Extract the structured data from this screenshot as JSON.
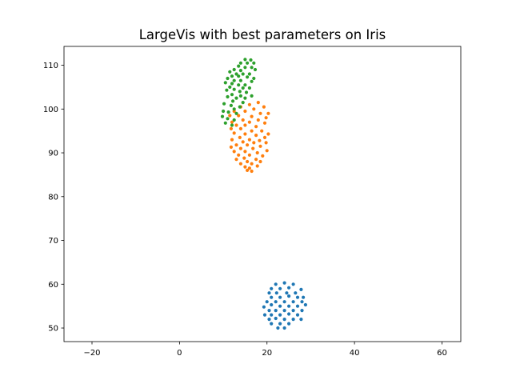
{
  "chart_data": {
    "type": "scatter",
    "title": "LargeVis with best parameters on Iris",
    "xlabel": "",
    "ylabel": "",
    "xlim": [
      -26.4,
      64.3
    ],
    "ylim": [
      46.9,
      114.3
    ],
    "xticks": [
      -20,
      0,
      20,
      40,
      60
    ],
    "yticks": [
      50,
      60,
      70,
      80,
      90,
      100,
      110
    ],
    "grid": false,
    "legend": "none",
    "series": [
      {
        "color": "#1f77b4",
        "points": [
          [
            22.0,
            60.0
          ],
          [
            24.0,
            60.3
          ],
          [
            26.0,
            60.0
          ],
          [
            21.0,
            59.0
          ],
          [
            23.0,
            59.0
          ],
          [
            25.0,
            59.2
          ],
          [
            27.8,
            58.8
          ],
          [
            20.5,
            58.0
          ],
          [
            22.2,
            58.0
          ],
          [
            24.5,
            58.0
          ],
          [
            26.5,
            58.0
          ],
          [
            21.0,
            57.0
          ],
          [
            23.0,
            57.0
          ],
          [
            25.0,
            57.3
          ],
          [
            27.0,
            57.0
          ],
          [
            28.3,
            57.0
          ],
          [
            20.0,
            56.0
          ],
          [
            22.0,
            56.0
          ],
          [
            24.0,
            56.0
          ],
          [
            26.0,
            56.0
          ],
          [
            28.0,
            56.0
          ],
          [
            21.0,
            55.3
          ],
          [
            23.0,
            55.0
          ],
          [
            25.0,
            55.0
          ],
          [
            27.0,
            55.0
          ],
          [
            28.8,
            55.3
          ],
          [
            19.3,
            54.8
          ],
          [
            20.5,
            54.0
          ],
          [
            22.0,
            54.0
          ],
          [
            24.0,
            54.0
          ],
          [
            26.0,
            54.0
          ],
          [
            28.0,
            54.0
          ],
          [
            19.5,
            53.0
          ],
          [
            21.0,
            53.0
          ],
          [
            23.0,
            53.0
          ],
          [
            25.0,
            53.2
          ],
          [
            27.0,
            53.0
          ],
          [
            20.5,
            52.0
          ],
          [
            22.0,
            52.2
          ],
          [
            24.0,
            52.0
          ],
          [
            26.0,
            52.0
          ],
          [
            27.8,
            52.0
          ],
          [
            21.0,
            51.0
          ],
          [
            23.0,
            51.0
          ],
          [
            25.0,
            51.0
          ],
          [
            22.5,
            50.0
          ],
          [
            24.0,
            50.0
          ]
        ]
      },
      {
        "color": "#ff7f0e",
        "points": [
          [
            18.0,
            101.5
          ],
          [
            16.0,
            101.0
          ],
          [
            19.3,
            100.5
          ],
          [
            14.0,
            100.5
          ],
          [
            17.0,
            100.0
          ],
          [
            12.5,
            99.5
          ],
          [
            15.0,
            99.5
          ],
          [
            18.5,
            99.0
          ],
          [
            20.3,
            99.0
          ],
          [
            11.5,
            98.5
          ],
          [
            13.5,
            98.5
          ],
          [
            16.5,
            98.3
          ],
          [
            19.8,
            98.0
          ],
          [
            14.5,
            97.5
          ],
          [
            18.0,
            97.5
          ],
          [
            12.0,
            97.0
          ],
          [
            16.0,
            97.0
          ],
          [
            19.5,
            96.8
          ],
          [
            13.0,
            96.3
          ],
          [
            15.0,
            96.3
          ],
          [
            17.5,
            96.0
          ],
          [
            11.8,
            95.5
          ],
          [
            14.0,
            95.5
          ],
          [
            18.8,
            95.0
          ],
          [
            16.5,
            95.0
          ],
          [
            12.5,
            94.5
          ],
          [
            15.0,
            94.3
          ],
          [
            20.3,
            94.3
          ],
          [
            17.5,
            94.0
          ],
          [
            13.8,
            93.5
          ],
          [
            19.5,
            93.5
          ],
          [
            16.0,
            93.0
          ],
          [
            12.0,
            93.0
          ],
          [
            18.3,
            92.8
          ],
          [
            14.5,
            92.5
          ],
          [
            17.0,
            92.3
          ],
          [
            19.8,
            92.3
          ],
          [
            13.0,
            91.8
          ],
          [
            15.5,
            91.8
          ],
          [
            18.5,
            91.5
          ],
          [
            11.8,
            91.3
          ],
          [
            14.0,
            91.0
          ],
          [
            16.8,
            91.0
          ],
          [
            20.0,
            90.5
          ],
          [
            12.5,
            90.3
          ],
          [
            15.0,
            90.3
          ],
          [
            17.8,
            90.0
          ],
          [
            13.5,
            89.5
          ],
          [
            16.0,
            89.5
          ],
          [
            19.0,
            89.3
          ],
          [
            14.8,
            88.8
          ],
          [
            17.5,
            88.5
          ],
          [
            13.0,
            88.5
          ],
          [
            15.5,
            88.0
          ],
          [
            18.5,
            88.0
          ],
          [
            14.0,
            87.5
          ],
          [
            16.5,
            87.5
          ],
          [
            17.8,
            87.0
          ],
          [
            15.0,
            86.8
          ],
          [
            16.0,
            86.5
          ],
          [
            15.5,
            86.0
          ],
          [
            16.5,
            85.8
          ]
        ]
      },
      {
        "color": "#2ca02c",
        "points": [
          [
            15.0,
            111.3
          ],
          [
            16.3,
            111.2
          ],
          [
            14.0,
            110.5
          ],
          [
            15.5,
            110.5
          ],
          [
            17.0,
            110.5
          ],
          [
            13.5,
            109.8
          ],
          [
            15.0,
            109.5
          ],
          [
            16.5,
            109.5
          ],
          [
            17.3,
            109.0
          ],
          [
            12.5,
            109.0
          ],
          [
            14.0,
            108.8
          ],
          [
            11.5,
            108.5
          ],
          [
            13.0,
            108.0
          ],
          [
            14.5,
            108.0
          ],
          [
            16.0,
            108.0
          ],
          [
            12.0,
            107.5
          ],
          [
            13.5,
            107.5
          ],
          [
            15.5,
            107.3
          ],
          [
            17.0,
            107.0
          ],
          [
            11.0,
            107.0
          ],
          [
            12.5,
            106.5
          ],
          [
            14.0,
            106.5
          ],
          [
            16.5,
            106.3
          ],
          [
            10.5,
            106.0
          ],
          [
            12.0,
            105.8
          ],
          [
            13.5,
            105.5
          ],
          [
            15.0,
            105.5
          ],
          [
            11.5,
            105.0
          ],
          [
            14.5,
            104.8
          ],
          [
            16.0,
            104.8
          ],
          [
            12.5,
            104.5
          ],
          [
            10.8,
            104.3
          ],
          [
            13.8,
            104.0
          ],
          [
            15.3,
            103.8
          ],
          [
            12.0,
            103.3
          ],
          [
            14.0,
            103.0
          ],
          [
            16.5,
            103.0
          ],
          [
            11.0,
            102.8
          ],
          [
            13.0,
            102.5
          ],
          [
            15.0,
            102.5
          ],
          [
            12.2,
            101.8
          ],
          [
            14.5,
            101.5
          ],
          [
            10.2,
            101.2
          ],
          [
            11.8,
            100.8
          ],
          [
            13.8,
            100.5
          ],
          [
            12.5,
            100.0
          ],
          [
            10.0,
            99.5
          ],
          [
            11.2,
            99.3
          ],
          [
            13.0,
            99.0
          ],
          [
            9.8,
            98.3
          ],
          [
            11.0,
            97.8
          ],
          [
            12.5,
            97.5
          ],
          [
            10.5,
            96.8
          ],
          [
            12.0,
            96.3
          ]
        ]
      }
    ]
  }
}
